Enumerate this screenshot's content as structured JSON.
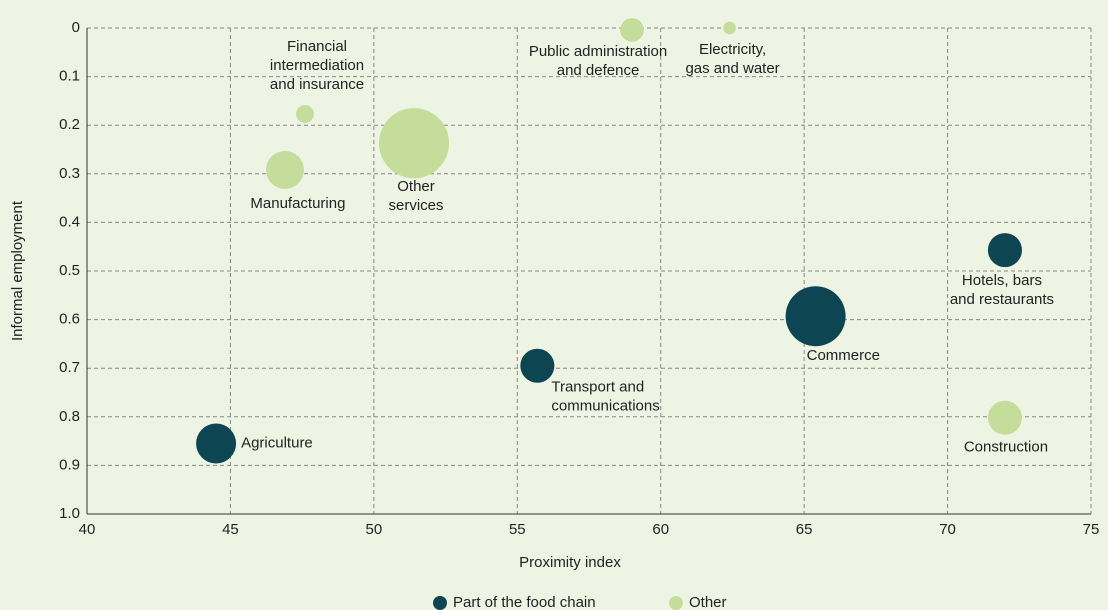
{
  "chart_data": {
    "type": "bubble",
    "xlabel": "Proximity index",
    "ylabel": "Informal employment",
    "xlim": [
      40,
      75
    ],
    "xticks": [
      40,
      45,
      50,
      55,
      60,
      65,
      70,
      75
    ],
    "ylim": [
      1,
      0
    ],
    "yticks": [
      0,
      0.1,
      0.2,
      0.3,
      0.4,
      0.5,
      0.6,
      0.7,
      0.8,
      0.9,
      {
        "value": 1,
        "label": "1.0"
      }
    ],
    "grid": true,
    "legend": "bottom",
    "series": [
      {
        "name": "Part of the food chain",
        "color": "#0d4652",
        "x": [
          44.5,
          55.7,
          65.4,
          72.0
        ],
        "values": [
          0.855,
          0.695,
          0.593,
          0.457
        ],
        "sizes": [
          4.0,
          2.9,
          9.0,
          2.9
        ],
        "labels": [
          [
            "Agriculture"
          ],
          [
            "Transport and",
            "communications"
          ],
          [
            "Commerce"
          ],
          [
            "Hotels, bars",
            "and restaurants"
          ]
        ]
      },
      {
        "name": "Other",
        "color": "#c5dd9a",
        "x": [
          72.0,
          46.9,
          47.6,
          51.4,
          59.0,
          62.4
        ],
        "values": [
          0.802,
          0.292,
          0.177,
          0.237,
          0.004,
          0.0
        ],
        "sizes": [
          2.9,
          3.6,
          0.8,
          12.3,
          1.4,
          0.4
        ],
        "labels": [
          [
            "Construction"
          ],
          [
            "Manufacturing"
          ],
          [
            "Financial",
            "intermediation",
            "and insurance"
          ],
          [
            "Other",
            "services"
          ],
          [
            "Public administration",
            "and defence"
          ],
          [
            "Electricity,",
            "gas and water"
          ]
        ]
      }
    ]
  }
}
